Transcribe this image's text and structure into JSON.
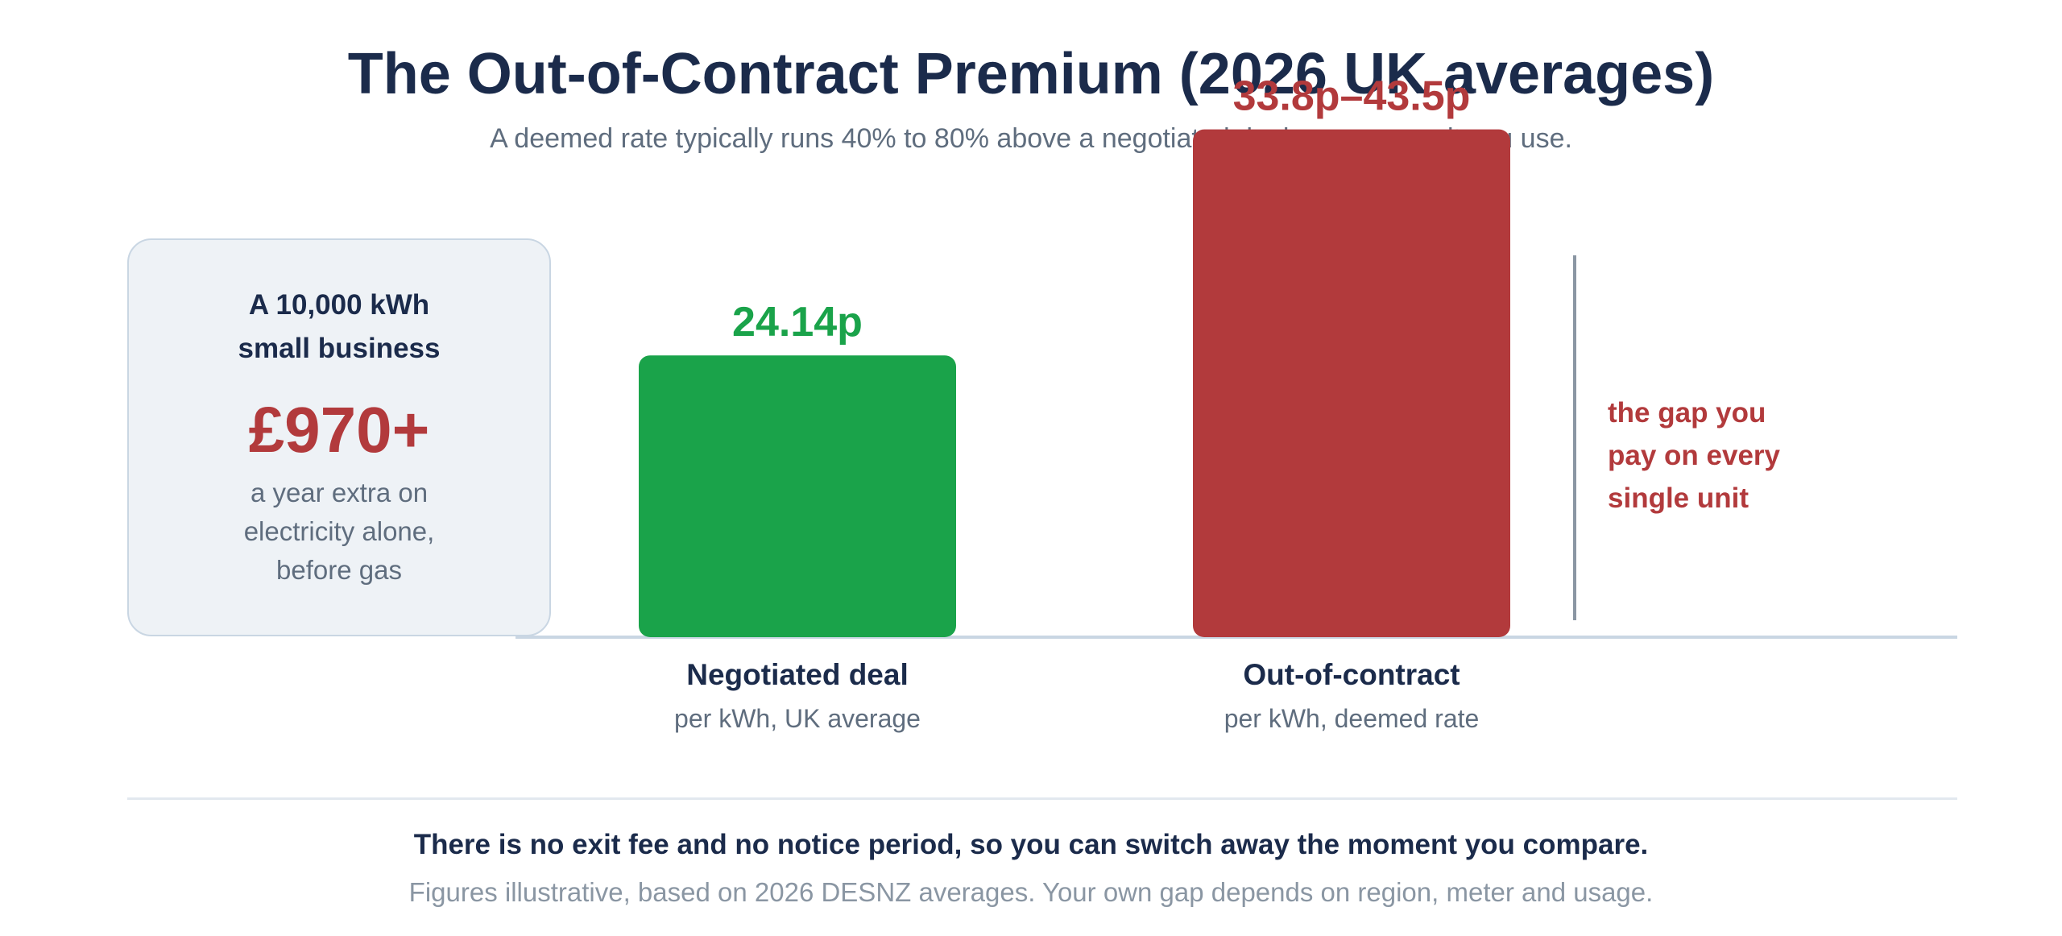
{
  "title": "The Out-of-Contract Premium (2026 UK averages)",
  "subtitle": "A deemed rate typically runs 40% to 80% above a negotiated deal, on every unit you use.",
  "callout": {
    "heading_line1": "A 10,000 kWh",
    "heading_line2": "small business",
    "value": "£970+",
    "text_line1": "a year extra on",
    "text_line2": "electricity alone,",
    "text_line3": "before gas"
  },
  "chart_data": {
    "type": "bar",
    "unit": "p per kWh",
    "categories": [
      "Negotiated deal",
      "Out-of-contract"
    ],
    "sublabels": [
      "per kWh, UK average",
      "per kWh, deemed rate"
    ],
    "values": [
      24.14,
      43.5
    ],
    "ranges": [
      null,
      [
        33.8,
        43.5
      ]
    ],
    "data_labels": [
      "24.14p",
      "33.8p–43.5p"
    ],
    "colors": [
      "#1aa34a",
      "#b23a3c"
    ],
    "grid": false,
    "annotation": {
      "line1": "the gap you",
      "line2": "pay on every",
      "line3": "single unit",
      "color": "#b23a3c"
    }
  },
  "footer": {
    "bold": "There is no exit fee and no notice period, so you can switch away the moment you compare.",
    "note": "Figures illustrative, based on 2026 DESNZ averages. Your own gap depends on region, meter and usage."
  },
  "colors": {
    "heading": "#1b2b4b",
    "muted": "#5f6d7e",
    "positive": "#1aa34a",
    "negative": "#b23a3c"
  }
}
